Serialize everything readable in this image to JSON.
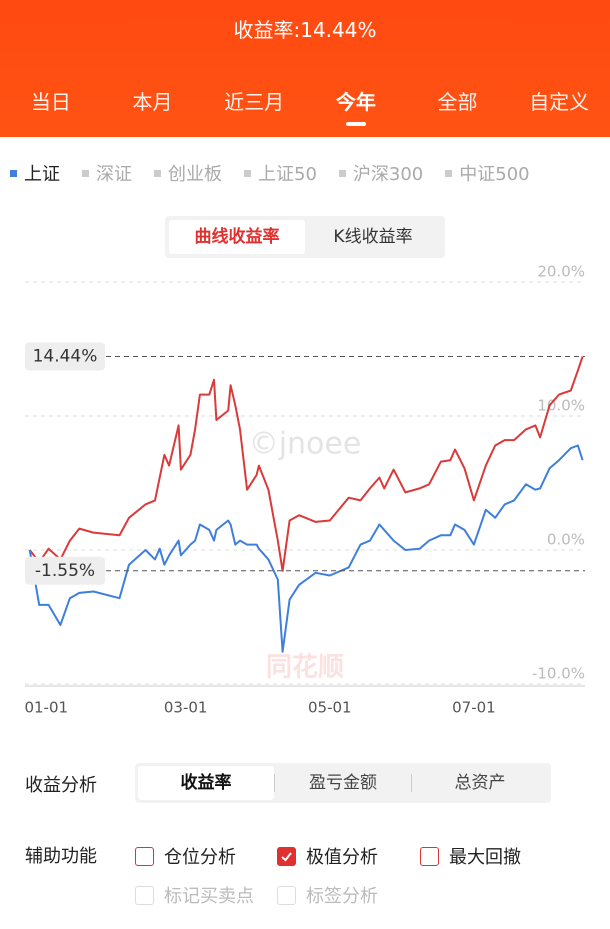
{
  "header": {
    "title": "收益率:14.44%"
  },
  "period_tabs": {
    "items": [
      "当日",
      "本月",
      "近三月",
      "今年",
      "全部",
      "自定义"
    ],
    "active": 3
  },
  "chart_mode": {
    "items": [
      "曲线收益率",
      "K线收益率"
    ],
    "active": 0
  },
  "chart_data": {
    "type": "line",
    "other_indices": [
      "深证",
      "创业板",
      "上证50",
      "沪深300",
      "中证500"
    ],
    "x": [
      -7,
      -3,
      1,
      6,
      10,
      14,
      20,
      31,
      35,
      42,
      46,
      48,
      50,
      52,
      56,
      57,
      61,
      63,
      65,
      69,
      71,
      72,
      77,
      78,
      80,
      82,
      85,
      89,
      90,
      94,
      98,
      100,
      103,
      107,
      114,
      120,
      128,
      133,
      137,
      141,
      143,
      147,
      152,
      158,
      162,
      167,
      171,
      173,
      177,
      181,
      186,
      190,
      194,
      198,
      203,
      207,
      209,
      213,
      217,
      222,
      225,
      227
    ],
    "series": [
      {
        "color": "#d93a3a",
        "values": [
          0.0,
          -0.9,
          0.1,
          -0.7,
          0.7,
          1.6,
          1.3,
          1.1,
          2.4,
          3.4,
          3.7,
          5.4,
          7.1,
          6.3,
          9.3,
          6.0,
          7.1,
          9.0,
          11.6,
          11.6,
          12.7,
          9.7,
          10.4,
          12.3,
          10.8,
          9.0,
          4.5,
          5.6,
          6.3,
          4.5,
          0.7,
          -1.55,
          2.2,
          2.6,
          2.1,
          2.2,
          3.9,
          3.7,
          4.6,
          5.4,
          4.6,
          6.0,
          4.3,
          4.6,
          4.9,
          6.6,
          6.7,
          7.5,
          6.1,
          3.7,
          6.3,
          7.8,
          8.2,
          8.2,
          9.0,
          9.3,
          8.4,
          10.8,
          11.6,
          11.9,
          13.4,
          14.44
        ]
      },
      {
        "name": "上证",
        "color": "#3f7fdc",
        "values": [
          0.0,
          -4.1,
          -4.1,
          -5.6,
          -3.6,
          -3.2,
          -3.1,
          -3.6,
          -1.1,
          0.0,
          -0.7,
          0.1,
          -1.1,
          -0.4,
          0.7,
          -0.4,
          0.4,
          0.7,
          1.9,
          1.5,
          0.7,
          1.5,
          2.2,
          1.9,
          0.4,
          0.7,
          0.4,
          0.4,
          0.1,
          -0.7,
          -2.2,
          -7.6,
          -3.7,
          -2.6,
          -1.7,
          -1.9,
          -1.3,
          0.4,
          0.7,
          1.9,
          1.5,
          0.7,
          0.0,
          0.1,
          0.7,
          1.1,
          1.1,
          1.9,
          1.5,
          0.4,
          3.0,
          2.4,
          3.4,
          3.7,
          4.9,
          4.5,
          4.6,
          6.1,
          6.7,
          7.6,
          7.8,
          6.7
        ]
      }
    ],
    "xlim": [
      -9,
      228
    ],
    "xticks": [
      {
        "value": 0,
        "label": "01-01"
      },
      {
        "value": 59,
        "label": "03-01"
      },
      {
        "value": 120,
        "label": "05-01"
      },
      {
        "value": 181,
        "label": "07-01"
      }
    ],
    "ylim": [
      -10,
      20
    ],
    "yticks": [
      {
        "value": 20,
        "label": "20.0%"
      },
      {
        "value": 10,
        "label": "10.0%"
      },
      {
        "value": 0,
        "label": "0.0%"
      },
      {
        "value": -10,
        "label": "-10.0%"
      }
    ],
    "grid": true,
    "annotations": [
      {
        "value": 14.44,
        "label": "14.44%"
      },
      {
        "value": -1.55,
        "label": "-1.55%"
      }
    ],
    "watermarks": [
      "©jnoee",
      "同花顺"
    ]
  },
  "analysis": {
    "label": "收益分析",
    "items": [
      "收益率",
      "盈亏金额",
      "总资产"
    ],
    "active": 0
  },
  "aux": {
    "label": "辅助功能",
    "options": [
      {
        "label": "仓位分析",
        "checked": false,
        "enabled": true
      },
      {
        "label": "极值分析",
        "checked": true,
        "enabled": true
      },
      {
        "label": "最大回撤",
        "checked": false,
        "enabled": true
      },
      {
        "label": "标记买卖点",
        "checked": false,
        "enabled": false
      },
      {
        "label": "标签分析",
        "checked": false,
        "enabled": false
      }
    ]
  }
}
